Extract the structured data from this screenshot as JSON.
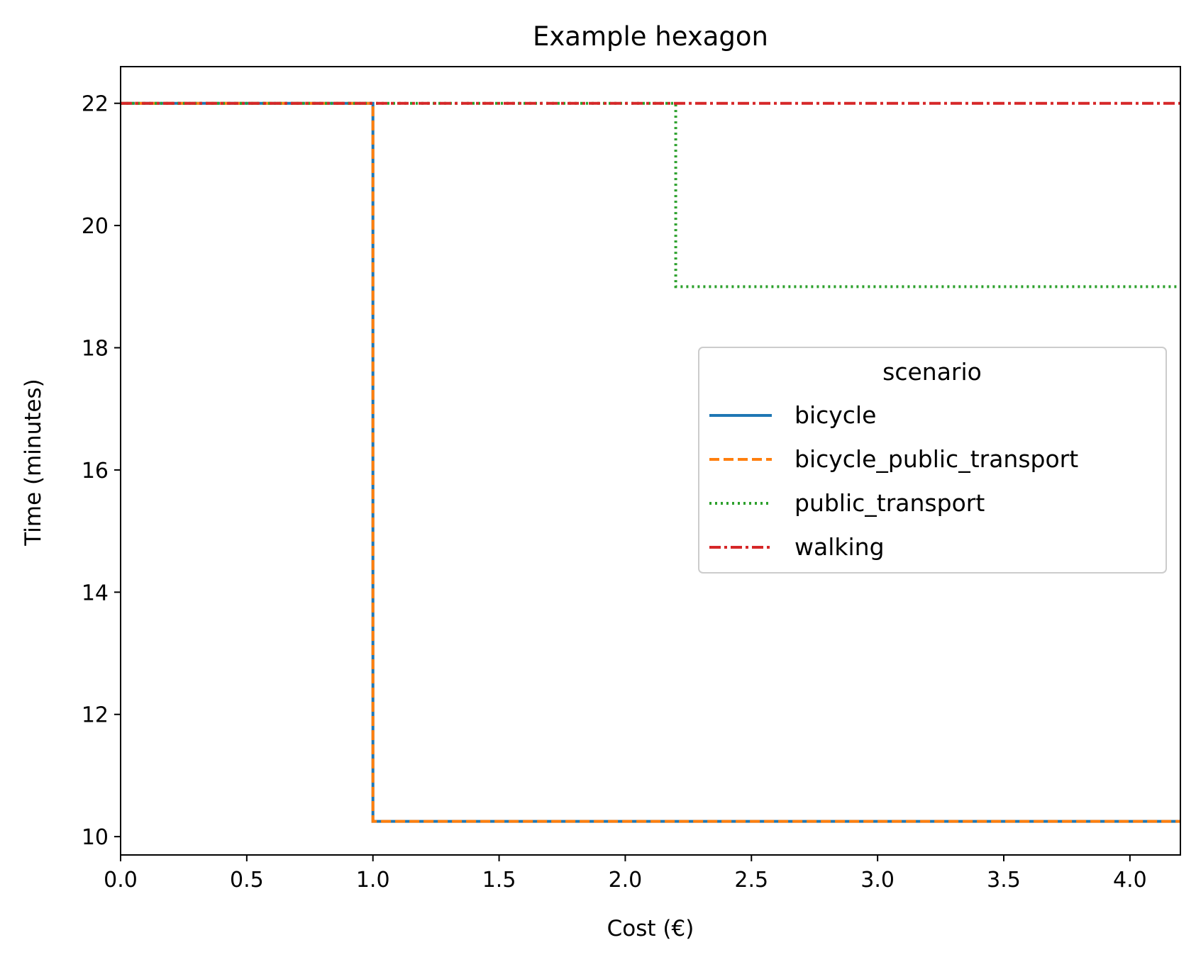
{
  "chart_data": {
    "type": "line",
    "step": true,
    "title": "Example hexagon",
    "xlabel": "Cost (€)",
    "ylabel": "Time (minutes)",
    "xlim": [
      0.0,
      4.2
    ],
    "ylim": [
      9.7,
      22.6
    ],
    "xticks": [
      0.0,
      0.5,
      1.0,
      1.5,
      2.0,
      2.5,
      3.0,
      3.5,
      4.0
    ],
    "xtick_labels": [
      "0.0",
      "0.5",
      "1.0",
      "1.5",
      "2.0",
      "2.5",
      "3.0",
      "3.5",
      "4.0"
    ],
    "yticks": [
      10,
      12,
      14,
      16,
      18,
      20,
      22
    ],
    "ytick_labels": [
      "10",
      "12",
      "14",
      "16",
      "18",
      "20",
      "22"
    ],
    "grid": false,
    "legend": {
      "title": "scenario",
      "placement": "center-right"
    },
    "series": [
      {
        "name": "bicycle",
        "color": "#1f77b4",
        "dash": "solid",
        "x": [
          0.0,
          1.0,
          1.0,
          4.2
        ],
        "y": [
          22,
          22,
          10.25,
          10.25
        ]
      },
      {
        "name": "bicycle_public_transport",
        "color": "#ff7f0e",
        "dash": "dashed",
        "x": [
          0.0,
          1.0,
          1.0,
          4.2
        ],
        "y": [
          22,
          22,
          10.25,
          10.25
        ]
      },
      {
        "name": "public_transport",
        "color": "#2ca02c",
        "dash": "dotted",
        "x": [
          0.0,
          2.2,
          2.2,
          4.2
        ],
        "y": [
          22,
          22,
          19,
          19
        ]
      },
      {
        "name": "walking",
        "color": "#d62728",
        "dash": "dashdot",
        "x": [
          0.0,
          4.2
        ],
        "y": [
          22,
          22
        ]
      }
    ]
  }
}
